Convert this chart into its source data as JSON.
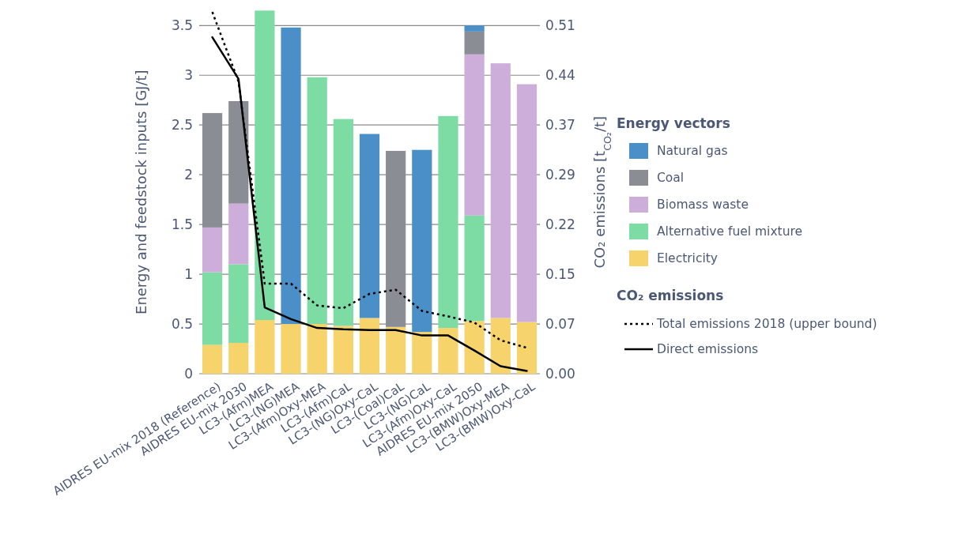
{
  "chart_data": {
    "type": "bar",
    "stacked": true,
    "ylabel": "Energy and feedstock inputs [GJ/t]",
    "y2label": "CO₂ emissions [t$_{CO₂}$/t]",
    "legend_title": "Energy vectors",
    "annotations": [
      "CO₂ emissions"
    ],
    "categories": [
      "AIDRES EU-mix 2018 (Reference)",
      "AIDRES EU-mix 2030",
      "LC3-(Afm)MEA",
      "LC3-(NG)MEA",
      "LC3-(Afm)Oxy-MEA",
      "LC3-(Afm)CaL",
      "LC3-(NG)Oxy-CaL",
      "LC3-(Coal)CaL",
      "LC3-(NG)CaL",
      "LC3-(Afm)Oxy-CaL",
      "AIDRES EU-mix 2050",
      "LC3-(BMW)Oxy-MEA",
      "LC3-(BMW)Oxy-CaL"
    ],
    "series": [
      {
        "name": "Electricity",
        "color": "#f6d36b",
        "values": [
          0.29,
          0.31,
          0.54,
          0.5,
          0.5,
          0.48,
          0.56,
          0.47,
          0.42,
          0.46,
          0.53,
          0.56,
          0.52
        ]
      },
      {
        "name": "Alternative fuel mixture",
        "color": "#7ddba4",
        "values": [
          0.73,
          0.79,
          3.11,
          null,
          2.48,
          2.08,
          null,
          null,
          null,
          2.13,
          1.06,
          null,
          null
        ]
      },
      {
        "name": "Biomass waste",
        "color": "#cdaedb",
        "values": [
          0.45,
          0.61,
          null,
          null,
          null,
          null,
          null,
          null,
          null,
          null,
          1.62,
          2.56,
          2.39
        ]
      },
      {
        "name": "Coal",
        "color": "#8a8d93",
        "values": [
          1.15,
          1.03,
          null,
          null,
          null,
          null,
          null,
          1.77,
          null,
          null,
          0.23,
          null,
          null
        ]
      },
      {
        "name": "Natural gas",
        "color": "#4a8fc7",
        "values": [
          null,
          null,
          null,
          2.98,
          null,
          null,
          1.85,
          null,
          1.83,
          null,
          0.06,
          null,
          null
        ]
      },
      {
        "name": "Total emissions 2018 (upper bound)",
        "type": "line",
        "axis": "y2",
        "color": "#000000",
        "line_style": "dotted",
        "values": [
          0.53,
          0.428,
          0.132,
          0.132,
          0.1,
          0.096,
          0.117,
          0.123,
          0.092,
          0.084,
          0.075,
          0.049,
          0.038
        ]
      },
      {
        "name": "Direct emissions",
        "type": "line",
        "axis": "y2",
        "color": "#000000",
        "line_style": "solid",
        "values": [
          0.493,
          0.432,
          0.097,
          0.08,
          0.067,
          0.065,
          0.064,
          0.064,
          0.056,
          0.056,
          0.034,
          0.011,
          0.004
        ]
      }
    ],
    "ylim": [
      0,
      3.65
    ],
    "yticks": [
      0,
      0.5,
      1,
      1.5,
      2,
      2.5,
      3,
      3.5
    ],
    "y2lim": [
      0,
      0.532
    ],
    "y2ticks": [
      {
        "value": 0,
        "label": "0.00"
      },
      {
        "value": 0.0729,
        "label": "0.07"
      },
      {
        "value": 0.1457,
        "label": "0.15"
      },
      {
        "value": 0.2186,
        "label": "0.22"
      },
      {
        "value": 0.2914,
        "label": "0.29"
      },
      {
        "value": 0.365,
        "label": "0.37"
      },
      {
        "value": 0.4371,
        "label": "0.44"
      },
      0.51
    ],
    "grid": "y",
    "legend": "right"
  }
}
